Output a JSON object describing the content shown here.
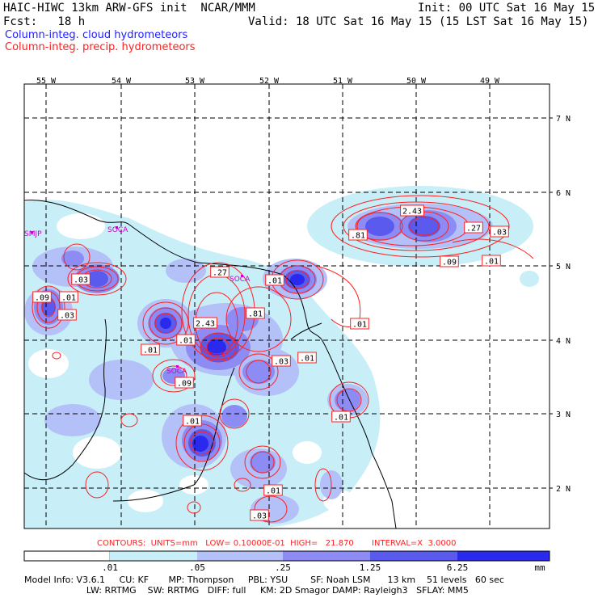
{
  "header": {
    "line1_left": "HAIC-HIWC 13km ARW-GFS init  NCAR/MMM",
    "line1_right": "Init: 00 UTC Sat 16 May 15",
    "line2_left": "Fcst:   18 h",
    "line2_right": "Valid: 18 UTC Sat 16 May 15 (15 LST Sat 16 May 15)",
    "field1": "Column-integ. cloud hydrometeors",
    "field2": "Column-integ. precip. hydrometeors"
  },
  "colors": {
    "cloud": "#2020ff",
    "precip": "#ff2020",
    "station": "#cc00cc",
    "shades": [
      "#ffffff",
      "#c8eef8",
      "#b4c0f8",
      "#8c8cf4",
      "#5a5aee",
      "#2a2aee"
    ]
  },
  "map": {
    "lon_labels": [
      "55 W",
      "54 W",
      "53 W",
      "52 W",
      "51 W",
      "50 W",
      "49 W"
    ],
    "lat_labels": [
      "7 N",
      "6 N",
      "5 N",
      "4 N",
      "3 N",
      "2 N"
    ],
    "stations": [
      "SMJP",
      "SOCA",
      "SOCA",
      "SOCA"
    ],
    "contour_labels": [
      ".03",
      ".09",
      ".01",
      ".03",
      ".27",
      ".01",
      "2.43",
      ".81",
      ".01",
      ".01",
      ".09",
      ".03",
      ".01",
      ".01",
      ".01",
      ".03",
      ".01",
      "2.43",
      ".81",
      ".27",
      ".03",
      ".09",
      ".01",
      ".01"
    ]
  },
  "legend": {
    "contours": "CONTOURS:  UNITS=mm   LOW= 0.10000E-01  HIGH=   21.870       INTERVAL=X  3.0000",
    "ticks": [
      ".01",
      ".05",
      ".25",
      "1.25",
      "6.25"
    ],
    "units": "mm"
  },
  "footer": {
    "line1": "Model Info: V3.6.1     CU: KF       MP: Thompson     PBL: YSU        SF: Noah LSM      13 km    51 levels   60 sec",
    "line2": "                      LW: RRTMG    SW: RRTMG   DIFF: full     KM: 2D Smagor DAMP: Rayleigh3   SFLAY: MM5"
  }
}
